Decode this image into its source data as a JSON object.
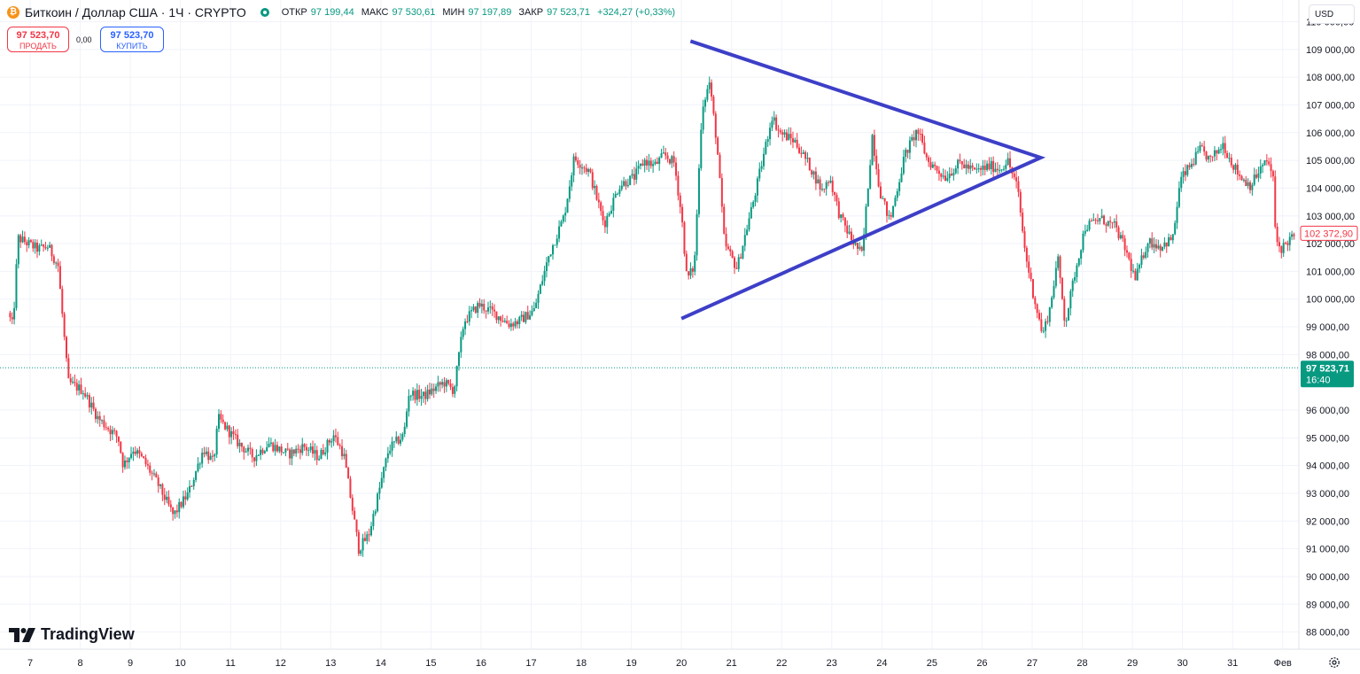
{
  "header": {
    "symbol_icon": "bitcoin-icon",
    "title": "Биткоин / Доллар США · 1Ч · CRYPTO",
    "ohlc": [
      {
        "label": "ОТКР",
        "value": "97 199,44"
      },
      {
        "label": "МАКС",
        "value": "97 530,61"
      },
      {
        "label": "МИН",
        "value": "97 197,89"
      },
      {
        "label": "ЗАКР",
        "value": "97 523,71"
      }
    ],
    "change": "+324,27 (+0,33%)"
  },
  "trade": {
    "sell_price": "97 523,70",
    "sell_label": "ПРОДАТЬ",
    "spread": "0,00",
    "buy_price": "97 523,70",
    "buy_label": "КУПИТЬ"
  },
  "currency": "USD",
  "logo_text": "TradingView",
  "colors": {
    "up": "#089981",
    "down": "#f23645",
    "drawing": "#3d3fc7",
    "grid": "#f0f3fa"
  },
  "chart_data": {
    "type": "candlestick",
    "timeframe": "1H",
    "x_ticks": [
      "7",
      "8",
      "9",
      "10",
      "11",
      "12",
      "13",
      "14",
      "15",
      "16",
      "17",
      "18",
      "19",
      "20",
      "21",
      "22",
      "23",
      "24",
      "25",
      "26",
      "27",
      "28",
      "29",
      "30",
      "31",
      "Фев"
    ],
    "y_ticks": [
      "88 000,00",
      "89 000,00",
      "90 000,00",
      "91 000,00",
      "92 000,00",
      "93 000,00",
      "94 000,00",
      "95 000,00",
      "96 000,00",
      "98 000,00",
      "99 000,00",
      "100 000,00",
      "101 000,00",
      "102 000,00",
      "103 000,00",
      "104 000,00",
      "105 000,00",
      "106 000,00",
      "107 000,00",
      "108 000,00",
      "109 000,00",
      "110 000,00"
    ],
    "y_range": [
      87300,
      110800
    ],
    "anchors": [
      {
        "day": 6.6,
        "price": 99500
      },
      {
        "day": 6.7,
        "price": 99000
      },
      {
        "day": 6.8,
        "price": 102200
      },
      {
        "day": 7.2,
        "price": 101800
      },
      {
        "day": 7.4,
        "price": 101900
      },
      {
        "day": 7.6,
        "price": 101200
      },
      {
        "day": 7.8,
        "price": 97000
      },
      {
        "day": 8.1,
        "price": 96700
      },
      {
        "day": 8.4,
        "price": 95700
      },
      {
        "day": 8.8,
        "price": 95000
      },
      {
        "day": 8.9,
        "price": 94000
      },
      {
        "day": 9.1,
        "price": 94600
      },
      {
        "day": 9.3,
        "price": 94200
      },
      {
        "day": 9.6,
        "price": 93300
      },
      {
        "day": 9.9,
        "price": 92200
      },
      {
        "day": 10.2,
        "price": 93000
      },
      {
        "day": 10.5,
        "price": 94600
      },
      {
        "day": 10.7,
        "price": 94100
      },
      {
        "day": 10.8,
        "price": 95700
      },
      {
        "day": 11.2,
        "price": 94800
      },
      {
        "day": 11.5,
        "price": 94300
      },
      {
        "day": 11.8,
        "price": 94800
      },
      {
        "day": 12.2,
        "price": 94400
      },
      {
        "day": 12.5,
        "price": 94700
      },
      {
        "day": 12.8,
        "price": 94300
      },
      {
        "day": 13.1,
        "price": 95100
      },
      {
        "day": 13.3,
        "price": 94400
      },
      {
        "day": 13.6,
        "price": 91000
      },
      {
        "day": 13.8,
        "price": 91500
      },
      {
        "day": 14.2,
        "price": 94600
      },
      {
        "day": 14.5,
        "price": 95100
      },
      {
        "day": 14.6,
        "price": 96600
      },
      {
        "day": 14.9,
        "price": 96500
      },
      {
        "day": 15.3,
        "price": 97000
      },
      {
        "day": 15.5,
        "price": 96700
      },
      {
        "day": 15.7,
        "price": 99200
      },
      {
        "day": 16.0,
        "price": 99800
      },
      {
        "day": 16.3,
        "price": 99500
      },
      {
        "day": 16.6,
        "price": 99100
      },
      {
        "day": 16.8,
        "price": 99200
      },
      {
        "day": 17.1,
        "price": 99600
      },
      {
        "day": 17.4,
        "price": 101600
      },
      {
        "day": 17.7,
        "price": 103000
      },
      {
        "day": 17.9,
        "price": 105100
      },
      {
        "day": 18.2,
        "price": 104600
      },
      {
        "day": 18.5,
        "price": 102700
      },
      {
        "day": 18.8,
        "price": 104100
      },
      {
        "day": 19.1,
        "price": 104400
      },
      {
        "day": 19.3,
        "price": 105000
      },
      {
        "day": 19.5,
        "price": 104800
      },
      {
        "day": 19.7,
        "price": 105200
      },
      {
        "day": 19.9,
        "price": 104900
      },
      {
        "day": 20.05,
        "price": 102900
      },
      {
        "day": 20.15,
        "price": 100700
      },
      {
        "day": 20.3,
        "price": 101200
      },
      {
        "day": 20.45,
        "price": 106900
      },
      {
        "day": 20.6,
        "price": 107800
      },
      {
        "day": 20.75,
        "price": 105600
      },
      {
        "day": 20.9,
        "price": 102000
      },
      {
        "day": 21.15,
        "price": 101100
      },
      {
        "day": 21.5,
        "price": 103700
      },
      {
        "day": 21.85,
        "price": 106600
      },
      {
        "day": 22.0,
        "price": 106000
      },
      {
        "day": 22.3,
        "price": 105700
      },
      {
        "day": 22.6,
        "price": 104800
      },
      {
        "day": 22.85,
        "price": 103900
      },
      {
        "day": 23.0,
        "price": 104400
      },
      {
        "day": 23.2,
        "price": 103000
      },
      {
        "day": 23.45,
        "price": 102100
      },
      {
        "day": 23.65,
        "price": 101600
      },
      {
        "day": 23.85,
        "price": 105900
      },
      {
        "day": 24.0,
        "price": 103900
      },
      {
        "day": 24.2,
        "price": 102800
      },
      {
        "day": 24.5,
        "price": 105200
      },
      {
        "day": 24.75,
        "price": 106100
      },
      {
        "day": 24.95,
        "price": 105000
      },
      {
        "day": 25.3,
        "price": 104400
      },
      {
        "day": 25.6,
        "price": 104900
      },
      {
        "day": 25.9,
        "price": 104600
      },
      {
        "day": 26.2,
        "price": 104800
      },
      {
        "day": 26.4,
        "price": 104700
      },
      {
        "day": 26.55,
        "price": 105000
      },
      {
        "day": 26.75,
        "price": 104000
      },
      {
        "day": 26.9,
        "price": 101700
      },
      {
        "day": 27.05,
        "price": 100300
      },
      {
        "day": 27.25,
        "price": 98700
      },
      {
        "day": 27.4,
        "price": 99700
      },
      {
        "day": 27.55,
        "price": 101500
      },
      {
        "day": 27.7,
        "price": 99100
      },
      {
        "day": 27.9,
        "price": 101000
      },
      {
        "day": 28.1,
        "price": 102600
      },
      {
        "day": 28.4,
        "price": 102900
      },
      {
        "day": 28.7,
        "price": 102600
      },
      {
        "day": 28.9,
        "price": 101800
      },
      {
        "day": 29.1,
        "price": 100700
      },
      {
        "day": 29.35,
        "price": 102100
      },
      {
        "day": 29.6,
        "price": 101900
      },
      {
        "day": 29.85,
        "price": 102200
      },
      {
        "day": 30.0,
        "price": 104300
      },
      {
        "day": 30.2,
        "price": 104800
      },
      {
        "day": 30.4,
        "price": 105400
      },
      {
        "day": 30.6,
        "price": 105000
      },
      {
        "day": 30.85,
        "price": 105600
      },
      {
        "day": 31.0,
        "price": 105000
      },
      {
        "day": 31.2,
        "price": 104400
      },
      {
        "day": 31.4,
        "price": 104100
      },
      {
        "day": 31.6,
        "price": 104700
      },
      {
        "day": 31.75,
        "price": 105000
      },
      {
        "day": 31.85,
        "price": 104300
      },
      {
        "day": 31.9,
        "price": 102200
      },
      {
        "day": 32.0,
        "price": 101800
      },
      {
        "day": 32.2,
        "price": 102200
      },
      {
        "day": 32.4,
        "price": 102300
      }
    ],
    "last_price": {
      "value": "97 523,71",
      "time": "16:40",
      "price": 97523.71
    },
    "marker": {
      "value": "102 372,90",
      "price": 102372.9
    },
    "drawing": {
      "type": "symmetrical-triangle",
      "vertices": [
        {
          "day": 20.18,
          "price": 109300
        },
        {
          "day": 27.17,
          "price": 105100
        },
        {
          "day": 20.0,
          "price": 99300
        }
      ]
    }
  }
}
